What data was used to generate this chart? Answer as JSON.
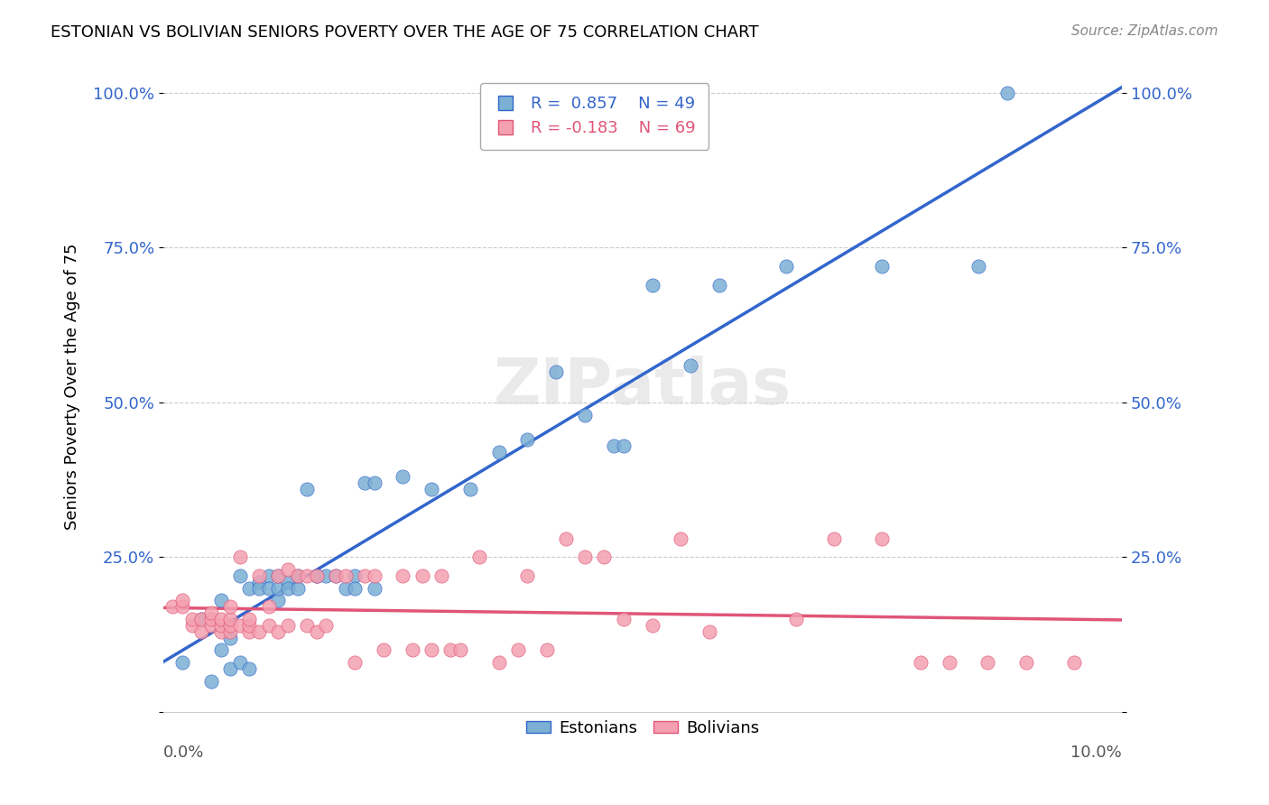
{
  "title": "ESTONIAN VS BOLIVIAN SENIORS POVERTY OVER THE AGE OF 75 CORRELATION CHART",
  "source": "Source: ZipAtlas.com",
  "ylabel": "Seniors Poverty Over the Age of 75",
  "xlim": [
    0.0,
    0.1
  ],
  "ylim": [
    0.0,
    1.05
  ],
  "yticks": [
    0.0,
    0.25,
    0.5,
    0.75,
    1.0
  ],
  "ytick_labels": [
    "",
    "25.0%",
    "50.0%",
    "75.0%",
    "100.0%"
  ],
  "estonian_R": 0.857,
  "estonian_N": 49,
  "bolivian_R": -0.183,
  "bolivian_N": 69,
  "estonian_color": "#7bafd4",
  "bolivian_color": "#f4a0b0",
  "estonian_line_color": "#3366cc",
  "bolivian_line_color": "#e05577",
  "watermark": "ZIPatlas",
  "estonian_x": [
    0.002,
    0.004,
    0.005,
    0.006,
    0.006,
    0.007,
    0.007,
    0.008,
    0.008,
    0.009,
    0.009,
    0.01,
    0.01,
    0.011,
    0.011,
    0.012,
    0.012,
    0.012,
    0.013,
    0.013,
    0.014,
    0.014,
    0.015,
    0.016,
    0.016,
    0.017,
    0.018,
    0.019,
    0.02,
    0.02,
    0.021,
    0.022,
    0.022,
    0.025,
    0.028,
    0.032,
    0.035,
    0.038,
    0.041,
    0.044,
    0.047,
    0.048,
    0.051,
    0.055,
    0.058,
    0.065,
    0.075,
    0.085,
    0.088
  ],
  "estonian_y": [
    0.08,
    0.15,
    0.05,
    0.18,
    0.1,
    0.12,
    0.07,
    0.22,
    0.08,
    0.2,
    0.07,
    0.21,
    0.2,
    0.22,
    0.2,
    0.18,
    0.2,
    0.22,
    0.21,
    0.2,
    0.2,
    0.22,
    0.36,
    0.22,
    0.22,
    0.22,
    0.22,
    0.2,
    0.22,
    0.2,
    0.37,
    0.37,
    0.2,
    0.38,
    0.36,
    0.36,
    0.42,
    0.44,
    0.55,
    0.48,
    0.43,
    0.43,
    0.69,
    0.56,
    0.69,
    0.72,
    0.72,
    0.72,
    1.0
  ],
  "bolivian_x": [
    0.001,
    0.002,
    0.002,
    0.003,
    0.003,
    0.004,
    0.004,
    0.005,
    0.005,
    0.005,
    0.006,
    0.006,
    0.006,
    0.007,
    0.007,
    0.007,
    0.007,
    0.008,
    0.008,
    0.009,
    0.009,
    0.009,
    0.01,
    0.01,
    0.011,
    0.011,
    0.012,
    0.012,
    0.013,
    0.013,
    0.014,
    0.015,
    0.015,
    0.016,
    0.016,
    0.017,
    0.018,
    0.019,
    0.02,
    0.021,
    0.022,
    0.023,
    0.025,
    0.026,
    0.027,
    0.028,
    0.029,
    0.03,
    0.031,
    0.033,
    0.035,
    0.037,
    0.038,
    0.04,
    0.042,
    0.044,
    0.046,
    0.048,
    0.051,
    0.054,
    0.057,
    0.066,
    0.07,
    0.075,
    0.079,
    0.082,
    0.086,
    0.09,
    0.095
  ],
  "bolivian_y": [
    0.17,
    0.17,
    0.18,
    0.14,
    0.15,
    0.13,
    0.15,
    0.14,
    0.15,
    0.16,
    0.13,
    0.14,
    0.15,
    0.13,
    0.14,
    0.15,
    0.17,
    0.14,
    0.25,
    0.13,
    0.14,
    0.15,
    0.13,
    0.22,
    0.14,
    0.17,
    0.13,
    0.22,
    0.14,
    0.23,
    0.22,
    0.14,
    0.22,
    0.22,
    0.13,
    0.14,
    0.22,
    0.22,
    0.08,
    0.22,
    0.22,
    0.1,
    0.22,
    0.1,
    0.22,
    0.1,
    0.22,
    0.1,
    0.1,
    0.25,
    0.08,
    0.1,
    0.22,
    0.1,
    0.28,
    0.25,
    0.25,
    0.15,
    0.14,
    0.28,
    0.13,
    0.15,
    0.28,
    0.28,
    0.08,
    0.08,
    0.08,
    0.08,
    0.08
  ]
}
